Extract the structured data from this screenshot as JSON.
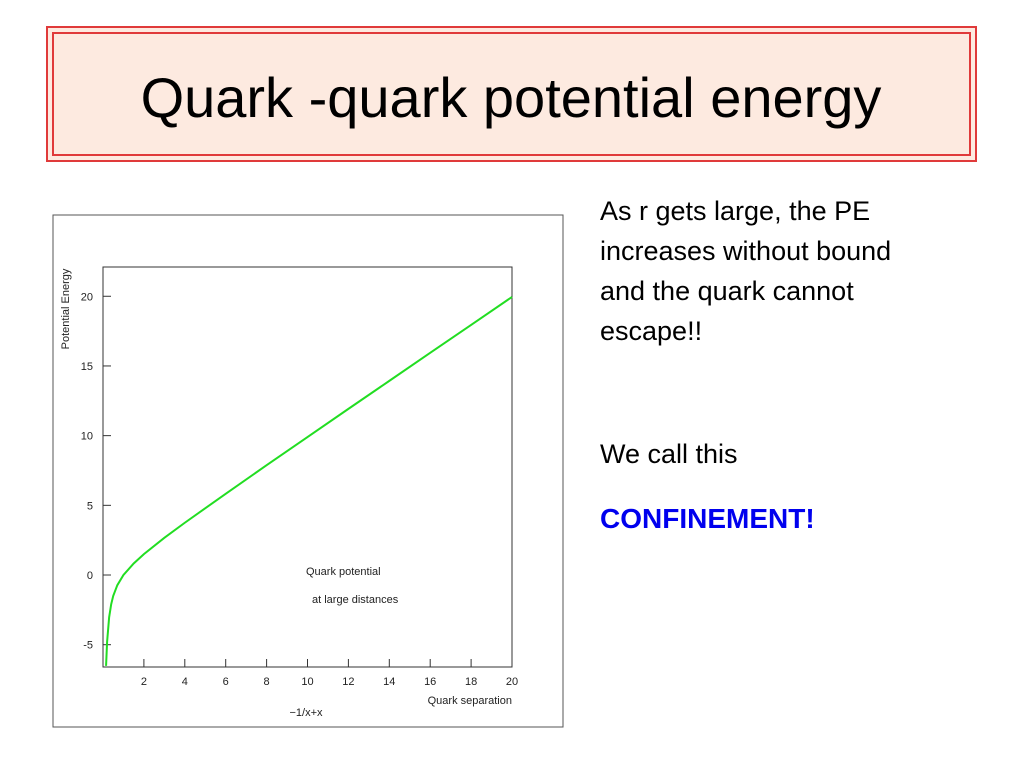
{
  "title": "Quark -quark potential energy",
  "text_lines": [
    "As r gets large, the PE",
    "increases without bound",
    "and the quark cannot",
    "escape!!",
    "We call this"
  ],
  "highlight": "CONFINEMENT!",
  "chart_data": {
    "type": "line",
    "x_label": "Quark separation",
    "y_label": "Potential Energy",
    "function_label": "−1/x+x",
    "annotations": [
      "Quark potential",
      "at large distances"
    ],
    "x": [
      0.15,
      0.2,
      0.3,
      0.4,
      0.5,
      0.7,
      1,
      1.5,
      2,
      3,
      4,
      6,
      8,
      10,
      12,
      14,
      16,
      18,
      20
    ],
    "series": [
      {
        "color": "#22dd22",
        "values": [
          -6.52,
          -4.8,
          -3.03,
          -2.1,
          -1.5,
          -0.73,
          0,
          0.83,
          1.5,
          2.67,
          3.75,
          5.83,
          7.88,
          9.9,
          11.92,
          13.93,
          15.94,
          17.94,
          19.95
        ]
      }
    ],
    "xlim": [
      0,
      20
    ],
    "ylim": [
      -6.6,
      22.1
    ],
    "xticks": [
      2,
      4,
      6,
      8,
      10,
      12,
      14,
      16,
      18,
      20
    ],
    "yticks": [
      -5,
      0,
      5,
      10,
      15,
      20
    ]
  }
}
